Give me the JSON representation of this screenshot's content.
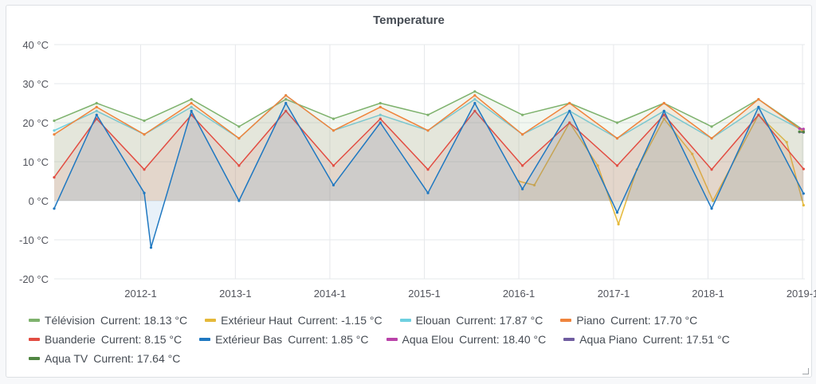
{
  "panel": {
    "title": "Temperature"
  },
  "chart_data": {
    "type": "line",
    "title": "Temperature",
    "y_unit": "°C",
    "ylim": [
      -20,
      40
    ],
    "y_ticks": [
      "40 °C",
      "30 °C",
      "20 °C",
      "10 °C",
      "0 °C",
      "-10 °C",
      "-20 °C"
    ],
    "y_tick_values": [
      40,
      30,
      20,
      10,
      0,
      -10,
      -20
    ],
    "xlim": [
      "2011-02-01",
      "2019-01-10"
    ],
    "x_ticks": [
      "2012-1",
      "2013-1",
      "2014-1",
      "2015-1",
      "2016-1",
      "2017-1",
      "2018-1",
      "2019-1"
    ],
    "x_tick_values": [
      "2012-01-01",
      "2013-01-01",
      "2014-01-01",
      "2015-01-01",
      "2016-01-01",
      "2017-01-01",
      "2018-01-01",
      "2019-01-01"
    ],
    "grid": true,
    "legend_position": "bottom",
    "series": [
      {
        "name": "Télévision",
        "current": "Current: 18.13 °C",
        "color": "#7eb26d",
        "x": [
          "2011-02-01",
          "2011-07-15",
          "2012-01-15",
          "2012-07-15",
          "2013-01-15",
          "2013-07-15",
          "2014-01-15",
          "2014-07-15",
          "2015-01-15",
          "2015-07-15",
          "2016-01-15",
          "2016-07-15",
          "2017-01-15",
          "2017-07-15",
          "2018-01-15",
          "2018-07-15",
          "2019-01-05"
        ],
        "values": [
          20.5,
          25,
          20.5,
          26,
          19,
          26,
          21,
          25,
          22,
          28,
          22,
          25,
          20,
          25,
          19,
          26,
          18.1
        ]
      },
      {
        "name": "Extérieur Haut",
        "current": "Current: -1.15 °C",
        "color": "#e5b93a",
        "x": [
          "2016-01-01",
          "2016-03-01",
          "2016-07-15",
          "2016-11-01",
          "2017-01-20",
          "2017-04-01",
          "2017-07-15",
          "2017-11-01",
          "2018-01-20",
          "2018-07-15",
          "2018-11-01",
          "2019-01-05"
        ],
        "values": [
          5,
          4,
          20,
          9,
          -6,
          8,
          21,
          12,
          0,
          22,
          15,
          -1.15
        ]
      },
      {
        "name": "Elouan",
        "current": "Current: 17.87 °C",
        "color": "#6ed0e0",
        "x": [
          "2011-02-01",
          "2011-07-15",
          "2012-01-15",
          "2012-07-15",
          "2013-01-15",
          "2013-07-15",
          "2014-01-15",
          "2014-07-15",
          "2015-01-15",
          "2015-07-15",
          "2016-01-15",
          "2016-07-15",
          "2017-01-15",
          "2017-07-15",
          "2018-01-15",
          "2018-07-15",
          "2019-01-05"
        ],
        "values": [
          18,
          23,
          17,
          24,
          16,
          27,
          18,
          22,
          18,
          26,
          17,
          23,
          16,
          23,
          16,
          24,
          17.9
        ]
      },
      {
        "name": "Piano",
        "current": "Current: 17.70 °C",
        "color": "#ef843c",
        "x": [
          "2011-02-01",
          "2011-07-15",
          "2012-01-15",
          "2012-07-15",
          "2013-01-15",
          "2013-07-15",
          "2014-01-15",
          "2014-07-15",
          "2015-01-15",
          "2015-07-15",
          "2016-01-15",
          "2016-07-15",
          "2017-01-15",
          "2017-07-15",
          "2018-01-15",
          "2018-07-15",
          "2019-01-05"
        ],
        "values": [
          17,
          24,
          17,
          25,
          16,
          27,
          18,
          24,
          18,
          27,
          17,
          25,
          16,
          25,
          16,
          26,
          17.7
        ]
      },
      {
        "name": "Buanderie",
        "current": "Current: 8.15 °C",
        "color": "#e24d42",
        "x": [
          "2011-02-01",
          "2011-07-15",
          "2012-01-15",
          "2012-07-15",
          "2013-01-15",
          "2013-07-15",
          "2014-01-15",
          "2014-07-15",
          "2015-01-15",
          "2015-07-15",
          "2016-01-15",
          "2016-07-15",
          "2017-01-15",
          "2017-07-15",
          "2018-01-15",
          "2018-07-15",
          "2019-01-05"
        ],
        "values": [
          6,
          21,
          8,
          22,
          9,
          23,
          9,
          21,
          8,
          23,
          9,
          20,
          9,
          22,
          8,
          22,
          8.15
        ]
      },
      {
        "name": "Extérieur Bas",
        "current": "Current: 1.85 °C",
        "color": "#1f78c1",
        "x": [
          "2011-02-01",
          "2011-07-15",
          "2012-01-15",
          "2012-02-10",
          "2012-07-15",
          "2013-01-15",
          "2013-07-15",
          "2014-01-15",
          "2014-07-15",
          "2015-01-15",
          "2015-07-15",
          "2016-01-15",
          "2016-07-15",
          "2017-01-15",
          "2017-07-15",
          "2018-01-15",
          "2018-07-15",
          "2019-01-05"
        ],
        "values": [
          -2,
          22,
          2,
          -12,
          23,
          0,
          25,
          4,
          20,
          2,
          25,
          3,
          23,
          -3,
          23,
          -2,
          24,
          1.85
        ]
      },
      {
        "name": "Aqua Elou",
        "current": "Current: 18.40 °C",
        "color": "#ba43a9",
        "x": [
          "2018-12-20",
          "2019-01-05"
        ],
        "values": [
          18.5,
          18.4
        ]
      },
      {
        "name": "Aqua Piano",
        "current": "Current: 17.51 °C",
        "color": "#705da0",
        "x": [
          "2018-12-20",
          "2019-01-05"
        ],
        "values": [
          17.6,
          17.51
        ]
      },
      {
        "name": "Aqua TV",
        "current": "Current: 17.64 °C",
        "color": "#508642",
        "x": [
          "2018-12-20",
          "2019-01-05"
        ],
        "values": [
          17.7,
          17.64
        ]
      }
    ]
  }
}
